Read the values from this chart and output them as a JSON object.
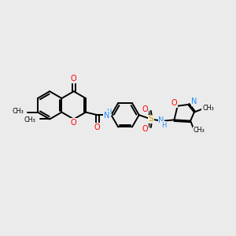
{
  "background_color": "#EBEBEB",
  "line_color": "#000000",
  "line_width": 1.4,
  "fig_width": 3.0,
  "fig_height": 3.0,
  "dpi": 100,
  "O_color": "#FF0000",
  "N_color": "#1E90FF",
  "S_color": "#C8A800",
  "C_color": "#000000",
  "xlim": [
    0,
    10
  ],
  "ylim": [
    0,
    10
  ]
}
